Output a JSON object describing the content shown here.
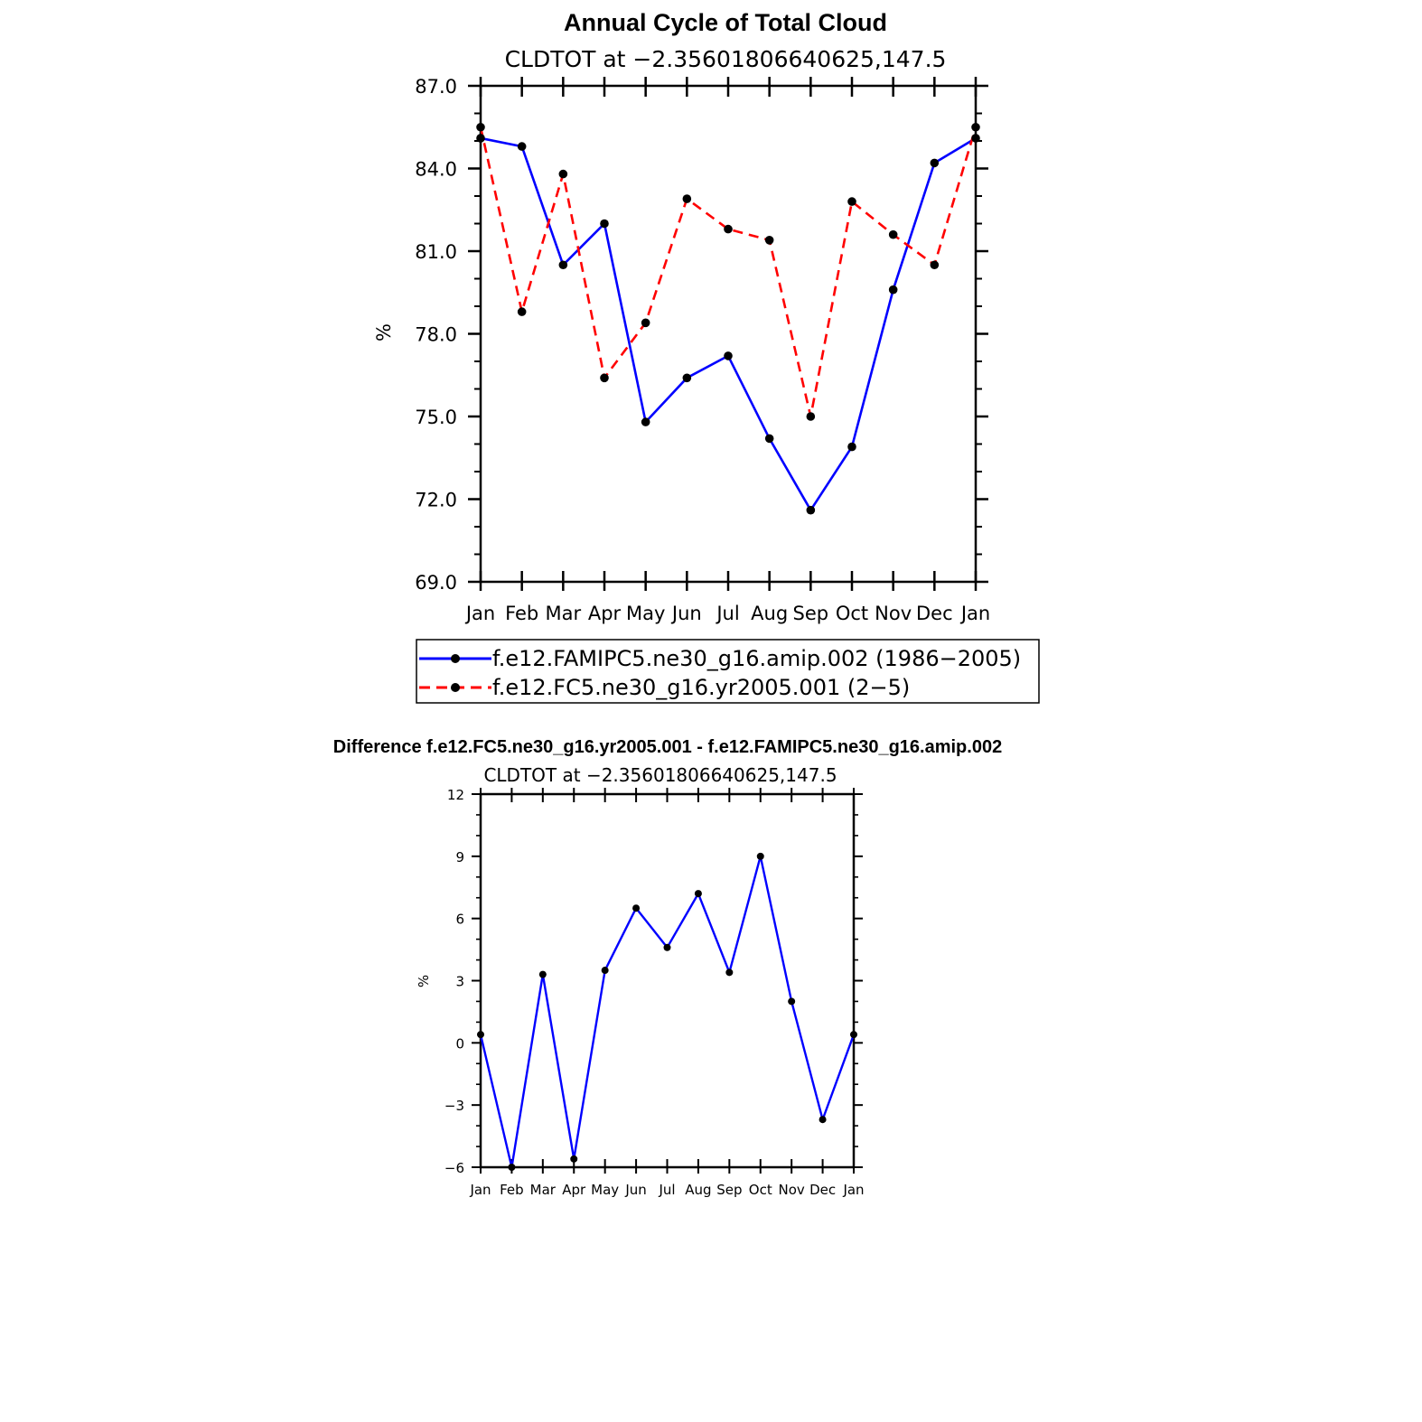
{
  "chart_data": [
    {
      "type": "line",
      "title": "Annual Cycle of Total Cloud",
      "subtitle": "CLDTOT at −2.35601806640625,147.5",
      "xlabel": "",
      "ylabel": "%",
      "categories": [
        "Jan",
        "Feb",
        "Mar",
        "Apr",
        "May",
        "Jun",
        "Jul",
        "Aug",
        "Sep",
        "Oct",
        "Nov",
        "Dec",
        "Jan"
      ],
      "ylim": [
        69.0,
        87.0
      ],
      "yticks": [
        "69.0",
        "72.0",
        "75.0",
        "78.0",
        "81.0",
        "84.0",
        "87.0"
      ],
      "series": [
        {
          "name": "f.e12.FAMIPC5.ne30_g16.amip.002 (1986−2005)",
          "color": "#0000ff",
          "dash": "solid",
          "values": [
            85.1,
            84.8,
            80.5,
            82.0,
            74.8,
            76.4,
            77.2,
            74.2,
            71.6,
            73.9,
            79.6,
            84.2,
            85.1
          ]
        },
        {
          "name": "f.e12.FC5.ne30_g16.yr2005.001 (2−5)",
          "color": "#ff0000",
          "dash": "dashed",
          "values": [
            85.5,
            78.8,
            83.8,
            76.4,
            78.4,
            82.9,
            81.8,
            81.4,
            75.0,
            82.8,
            81.6,
            80.5,
            85.5
          ]
        }
      ]
    },
    {
      "type": "line",
      "title": "Difference f.e12.FC5.ne30_g16.yr2005.001 - f.e12.FAMIPC5.ne30_g16.amip.002",
      "subtitle": "CLDTOT at −2.35601806640625,147.5",
      "xlabel": "",
      "ylabel": "%",
      "categories": [
        "Jan",
        "Feb",
        "Mar",
        "Apr",
        "May",
        "Jun",
        "Jul",
        "Aug",
        "Sep",
        "Oct",
        "Nov",
        "Dec",
        "Jan"
      ],
      "ylim": [
        -6,
        12
      ],
      "yticks": [
        "−6",
        "−3",
        "0",
        "3",
        "6",
        "9",
        "12"
      ],
      "series": [
        {
          "name": "difference",
          "color": "#0000ff",
          "dash": "solid",
          "values": [
            0.4,
            -6.0,
            3.3,
            -5.6,
            3.5,
            6.5,
            4.6,
            7.2,
            3.4,
            9.0,
            2.0,
            -3.7,
            0.4
          ]
        }
      ]
    }
  ]
}
